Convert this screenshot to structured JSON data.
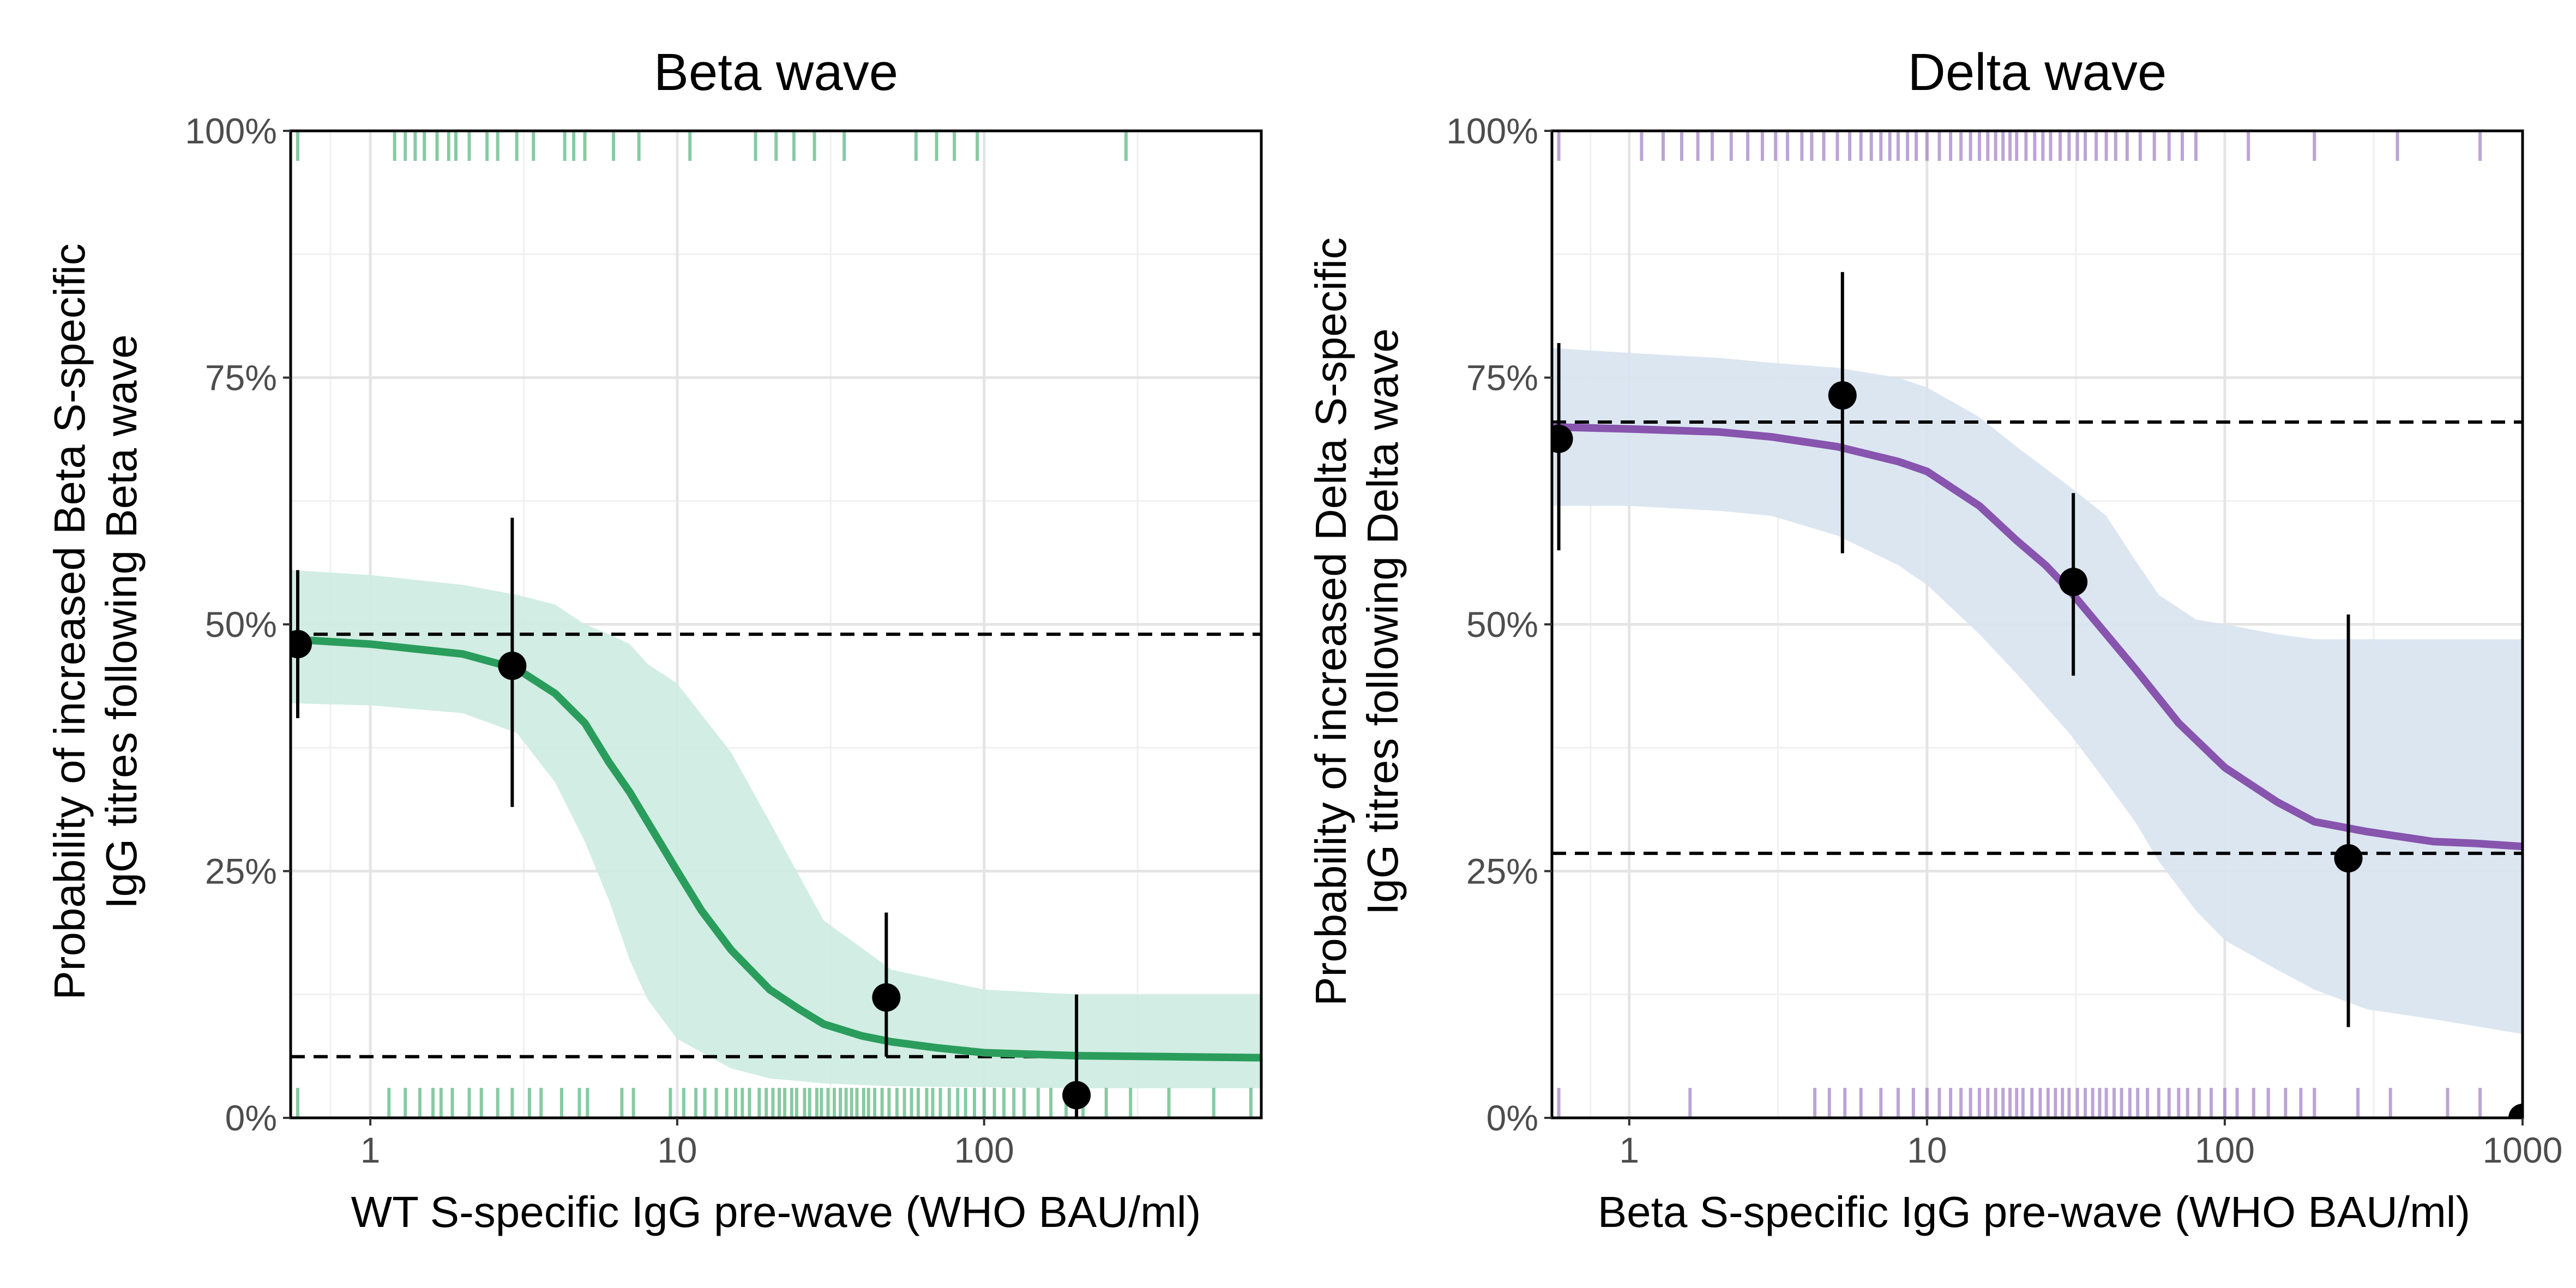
{
  "chart_data": [
    {
      "type": "line",
      "title": "Beta wave",
      "xlabel": "WT S-specific IgG pre-wave (WHO BAU/ml)",
      "ylabel_lines": [
        "Probability of increased Beta S-specific",
        "IgG titres following Beta wave"
      ],
      "x_scale": "log10",
      "xlim": [
        0.55,
        800
      ],
      "ylim": [
        0,
        1
      ],
      "x_ticks": [
        1,
        10,
        100
      ],
      "x_tick_labels": [
        "1",
        "10",
        "100"
      ],
      "y_ticks": [
        0,
        0.25,
        0.5,
        0.75,
        1
      ],
      "y_tick_labels": [
        "0%",
        "25%",
        "50%",
        "75%",
        "100%"
      ],
      "grid": true,
      "colors": {
        "line": "#2a9d5c",
        "ribbon": "#cdebe0",
        "rug": "#5dba83",
        "points": "#000000"
      },
      "fitted_curve": {
        "x": [
          0.55,
          1,
          2,
          3,
          4,
          5,
          6,
          7,
          8,
          10,
          12,
          15,
          20,
          25,
          30,
          40,
          50,
          70,
          100,
          200,
          400,
          800
        ],
        "y": [
          0.485,
          0.48,
          0.47,
          0.455,
          0.43,
          0.4,
          0.36,
          0.33,
          0.3,
          0.25,
          0.21,
          0.17,
          0.13,
          0.11,
          0.095,
          0.083,
          0.077,
          0.071,
          0.066,
          0.063,
          0.062,
          0.061
        ]
      },
      "ci_ribbon": {
        "x": [
          0.55,
          1,
          2,
          3,
          4,
          5,
          6,
          7,
          8,
          10,
          15,
          20,
          30,
          50,
          100,
          200,
          400,
          800
        ],
        "lower": [
          0.42,
          0.418,
          0.41,
          0.39,
          0.34,
          0.28,
          0.22,
          0.16,
          0.12,
          0.08,
          0.05,
          0.04,
          0.035,
          0.032,
          0.031,
          0.03,
          0.03,
          0.03
        ],
        "upper": [
          0.555,
          0.55,
          0.54,
          0.53,
          0.52,
          0.5,
          0.49,
          0.48,
          0.46,
          0.44,
          0.37,
          0.3,
          0.2,
          0.15,
          0.13,
          0.125,
          0.125,
          0.125
        ]
      },
      "reference_lines": [
        0.49,
        0.062
      ],
      "binned_points": [
        {
          "x": 0.58,
          "y": 0.48,
          "lo": 0.405,
          "hi": 0.555
        },
        {
          "x": 2.9,
          "y": 0.458,
          "lo": 0.315,
          "hi": 0.608
        },
        {
          "x": 48,
          "y": 0.122,
          "lo": 0.062,
          "hi": 0.208
        },
        {
          "x": 200,
          "y": 0.023,
          "lo": 0.0,
          "hi": 0.125
        }
      ],
      "rug_top": [
        0.58,
        1.2,
        1.3,
        1.4,
        1.5,
        1.65,
        1.8,
        1.9,
        2.1,
        2.4,
        2.6,
        3.0,
        3.4,
        4.3,
        4.6,
        5.0,
        6.2,
        7.5,
        11,
        18,
        21,
        24,
        28,
        35,
        60,
        70,
        80,
        95,
        290
      ],
      "rug_bottom": [
        0.58,
        1.15,
        1.3,
        1.45,
        1.6,
        1.7,
        1.85,
        2.1,
        2.3,
        2.6,
        2.9,
        3.3,
        3.6,
        4.2,
        4.8,
        5.1,
        6.6,
        7.2,
        9.5,
        10.5,
        11.5,
        12.3,
        13.4,
        14.5,
        15.5,
        16.3,
        17.2,
        18.5,
        19.5,
        20.5,
        21.5,
        22.4,
        23.6,
        24.5,
        26,
        27,
        28.5,
        29.5,
        31,
        32.5,
        34,
        35.5,
        37,
        38.5,
        40.5,
        42,
        44,
        46.5,
        49,
        52,
        55,
        58,
        61,
        65,
        68,
        72,
        77,
        82,
        87,
        93,
        100,
        108,
        116,
        125,
        135,
        150,
        165,
        185,
        210,
        250,
        300,
        400,
        560,
        740
      ]
    },
    {
      "type": "line",
      "title": "Delta wave",
      "xlabel": "Beta S-specific IgG pre-wave (WHO BAU/ml)",
      "ylabel_lines": [
        "Probability of increased Delta S-specific",
        "IgG titres following Delta wave"
      ],
      "x_scale": "log10",
      "xlim": [
        0.55,
        1000
      ],
      "ylim": [
        0,
        1
      ],
      "x_ticks": [
        1,
        10,
        100,
        1000
      ],
      "x_tick_labels": [
        "1",
        "10",
        "100",
        "1000"
      ],
      "y_ticks": [
        0,
        0.25,
        0.5,
        0.75,
        1
      ],
      "y_tick_labels": [
        "0%",
        "25%",
        "50%",
        "75%",
        "100%"
      ],
      "grid": true,
      "colors": {
        "line": "#8754ae",
        "ribbon": "#d8e3f0",
        "rug": "#a586c8",
        "points": "#000000"
      },
      "fitted_curve": {
        "x": [
          0.55,
          1,
          2,
          3,
          5,
          8,
          10,
          15,
          20,
          25,
          30,
          40,
          50,
          70,
          100,
          150,
          200,
          300,
          500,
          700,
          1000
        ],
        "y": [
          0.7,
          0.698,
          0.695,
          0.69,
          0.68,
          0.665,
          0.655,
          0.62,
          0.585,
          0.56,
          0.535,
          0.49,
          0.455,
          0.4,
          0.355,
          0.32,
          0.3,
          0.29,
          0.28,
          0.278,
          0.275
        ]
      },
      "ci_ribbon": {
        "x": [
          0.55,
          1,
          2,
          3,
          5,
          8,
          10,
          15,
          20,
          30,
          40,
          50,
          60,
          80,
          100,
          150,
          200,
          300,
          500,
          1000
        ],
        "lower": [
          0.62,
          0.62,
          0.615,
          0.61,
          0.59,
          0.56,
          0.54,
          0.49,
          0.45,
          0.39,
          0.34,
          0.3,
          0.26,
          0.21,
          0.18,
          0.15,
          0.13,
          0.11,
          0.1,
          0.085
        ],
        "upper": [
          0.78,
          0.775,
          0.77,
          0.765,
          0.76,
          0.75,
          0.74,
          0.71,
          0.68,
          0.64,
          0.61,
          0.565,
          0.53,
          0.505,
          0.5,
          0.49,
          0.485,
          0.485,
          0.485,
          0.485
        ]
      },
      "reference_lines": [
        0.705,
        0.268
      ],
      "binned_points": [
        {
          "x": 0.58,
          "y": 0.688,
          "lo": 0.575,
          "hi": 0.785
        },
        {
          "x": 5.2,
          "y": 0.732,
          "lo": 0.572,
          "hi": 0.857
        },
        {
          "x": 31,
          "y": 0.543,
          "lo": 0.448,
          "hi": 0.633
        },
        {
          "x": 260,
          "y": 0.263,
          "lo": 0.092,
          "hi": 0.51
        },
        {
          "x": 1000,
          "y": 0.0,
          "lo": 0.0,
          "hi": 0.0
        }
      ],
      "rug_top": [
        0.58,
        1.1,
        1.3,
        1.5,
        1.7,
        1.9,
        2.2,
        2.5,
        2.8,
        3.1,
        3.4,
        3.8,
        4.1,
        4.5,
        5.0,
        5.5,
        6.0,
        6.5,
        7.0,
        7.5,
        8.0,
        8.6,
        9.2,
        10,
        11,
        12,
        13,
        14,
        15,
        16,
        17,
        18,
        19,
        20,
        21.5,
        23,
        24.5,
        26,
        28,
        30,
        32,
        34,
        37,
        40,
        43,
        47,
        52,
        58,
        65,
        72,
        80,
        120,
        200,
        380,
        720
      ],
      "rug_bottom": [
        0.58,
        1.6,
        4.2,
        4.7,
        5.3,
        6.0,
        7.0,
        8.0,
        9.0,
        10,
        11,
        12,
        13,
        14,
        15,
        16,
        17,
        18,
        19,
        20,
        21,
        22.5,
        24,
        25.5,
        27,
        28.5,
        30,
        32,
        34,
        36,
        38,
        40,
        42.5,
        45,
        48,
        51,
        55,
        60,
        65,
        70,
        75,
        82,
        90,
        100,
        110,
        125,
        140,
        160,
        180,
        200,
        280,
        360,
        560,
        720
      ]
    }
  ]
}
